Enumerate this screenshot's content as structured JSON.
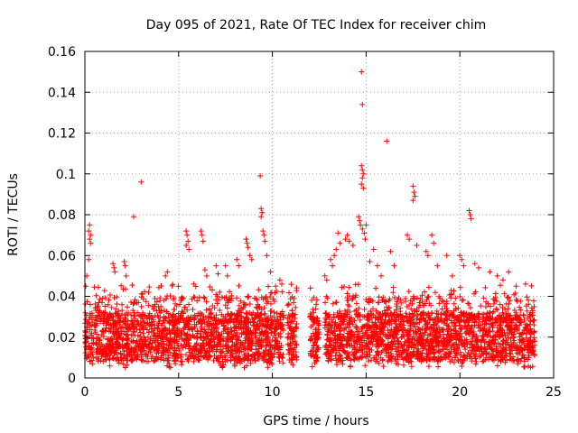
{
  "chart_data": {
    "type": "scatter",
    "title": "Day 095 of 2021, Rate Of TEC Index for receiver chim",
    "xlabel": "GPS time / hours",
    "ylabel": "ROTI / TECUs",
    "xlim": [
      0,
      25
    ],
    "ylim": [
      0,
      0.16
    ],
    "x_ticks": [
      0,
      5,
      10,
      15,
      20,
      25
    ],
    "x_tick_labels": [
      "0",
      "5",
      "10",
      "15",
      "20",
      "25"
    ],
    "y_ticks": [
      0,
      0.02,
      0.04,
      0.06,
      0.08,
      0.1,
      0.12,
      0.14,
      0.16
    ],
    "y_tick_labels": [
      "0",
      "0.02",
      "0.04",
      "0.06",
      "0.08",
      "0.1",
      "0.12",
      "0.14",
      "0.16"
    ],
    "grid": true,
    "marker": "+",
    "point_color": "#ff0000",
    "series": [
      {
        "segments": [
          [
            0.0,
            10.6
          ],
          [
            10.8,
            11.3
          ],
          [
            12.0,
            12.5
          ],
          [
            12.8,
            24.0
          ]
        ],
        "points": [
          [
            0.25,
            0.075
          ],
          [
            0.2,
            0.072
          ],
          [
            0.3,
            0.07
          ],
          [
            0.25,
            0.068
          ],
          [
            0.3,
            0.066
          ],
          [
            0.2,
            0.058
          ],
          [
            0.1,
            0.05
          ],
          [
            0.05,
            0.045
          ],
          [
            1.5,
            0.056
          ],
          [
            1.55,
            0.054
          ],
          [
            1.6,
            0.052
          ],
          [
            2.1,
            0.057
          ],
          [
            2.15,
            0.055
          ],
          [
            2.2,
            0.05
          ],
          [
            2.6,
            0.079
          ],
          [
            3.0,
            0.096
          ],
          [
            3.4,
            0.042
          ],
          [
            4.3,
            0.05
          ],
          [
            4.4,
            0.052
          ],
          [
            5.4,
            0.072
          ],
          [
            5.45,
            0.07
          ],
          [
            5.5,
            0.067
          ],
          [
            5.4,
            0.065
          ],
          [
            5.55,
            0.063
          ],
          [
            5.8,
            0.046
          ],
          [
            6.2,
            0.072
          ],
          [
            6.25,
            0.07
          ],
          [
            6.3,
            0.067
          ],
          [
            6.4,
            0.053
          ],
          [
            6.5,
            0.05
          ],
          [
            7.0,
            0.055
          ],
          [
            7.1,
            0.051
          ],
          [
            7.5,
            0.055
          ],
          [
            7.6,
            0.05
          ],
          [
            8.1,
            0.058
          ],
          [
            8.2,
            0.055
          ],
          [
            8.6,
            0.068
          ],
          [
            8.65,
            0.066
          ],
          [
            8.7,
            0.064
          ],
          [
            8.8,
            0.06
          ],
          [
            8.9,
            0.058
          ],
          [
            9.35,
            0.099
          ],
          [
            9.4,
            0.083
          ],
          [
            9.45,
            0.081
          ],
          [
            9.4,
            0.079
          ],
          [
            9.5,
            0.072
          ],
          [
            9.55,
            0.07
          ],
          [
            9.6,
            0.067
          ],
          [
            9.7,
            0.06
          ],
          [
            9.9,
            0.052
          ],
          [
            10.4,
            0.048
          ],
          [
            10.5,
            0.046
          ],
          [
            11.0,
            0.022
          ],
          [
            11.1,
            0.02
          ],
          [
            12.2,
            0.032
          ],
          [
            12.25,
            0.028
          ],
          [
            12.8,
            0.05
          ],
          [
            12.9,
            0.048
          ],
          [
            13.1,
            0.058
          ],
          [
            13.2,
            0.055
          ],
          [
            13.3,
            0.06
          ],
          [
            13.4,
            0.063
          ],
          [
            13.5,
            0.071
          ],
          [
            13.6,
            0.066
          ],
          [
            13.9,
            0.068
          ],
          [
            14.0,
            0.07
          ],
          [
            14.1,
            0.067
          ],
          [
            14.3,
            0.065
          ],
          [
            14.75,
            0.15
          ],
          [
            14.8,
            0.134
          ],
          [
            14.75,
            0.104
          ],
          [
            14.8,
            0.102
          ],
          [
            14.85,
            0.1
          ],
          [
            14.8,
            0.098
          ],
          [
            14.75,
            0.095
          ],
          [
            14.85,
            0.093
          ],
          [
            14.6,
            0.079
          ],
          [
            14.65,
            0.077
          ],
          [
            14.7,
            0.075
          ],
          [
            14.8,
            0.073
          ],
          [
            14.9,
            0.071
          ],
          [
            14.95,
            0.068
          ],
          [
            15.0,
            0.075
          ],
          [
            15.2,
            0.057
          ],
          [
            15.4,
            0.063
          ],
          [
            15.6,
            0.055
          ],
          [
            15.8,
            0.05
          ],
          [
            16.1,
            0.116
          ],
          [
            16.3,
            0.062
          ],
          [
            16.5,
            0.055
          ],
          [
            17.2,
            0.07
          ],
          [
            17.3,
            0.068
          ],
          [
            17.5,
            0.094
          ],
          [
            17.55,
            0.091
          ],
          [
            17.6,
            0.089
          ],
          [
            17.5,
            0.087
          ],
          [
            17.7,
            0.065
          ],
          [
            18.2,
            0.062
          ],
          [
            18.3,
            0.06
          ],
          [
            18.5,
            0.07
          ],
          [
            18.6,
            0.066
          ],
          [
            18.8,
            0.055
          ],
          [
            19.3,
            0.06
          ],
          [
            19.6,
            0.05
          ],
          [
            20.0,
            0.06
          ],
          [
            20.1,
            0.058
          ],
          [
            20.2,
            0.055
          ],
          [
            20.5,
            0.082
          ],
          [
            20.55,
            0.08
          ],
          [
            20.6,
            0.078
          ],
          [
            20.8,
            0.056
          ],
          [
            21.0,
            0.054
          ],
          [
            21.6,
            0.052
          ],
          [
            22.0,
            0.05
          ],
          [
            22.3,
            0.048
          ],
          [
            22.6,
            0.052
          ],
          [
            23.0,
            0.045
          ],
          [
            23.5,
            0.046
          ]
        ]
      }
    ]
  }
}
